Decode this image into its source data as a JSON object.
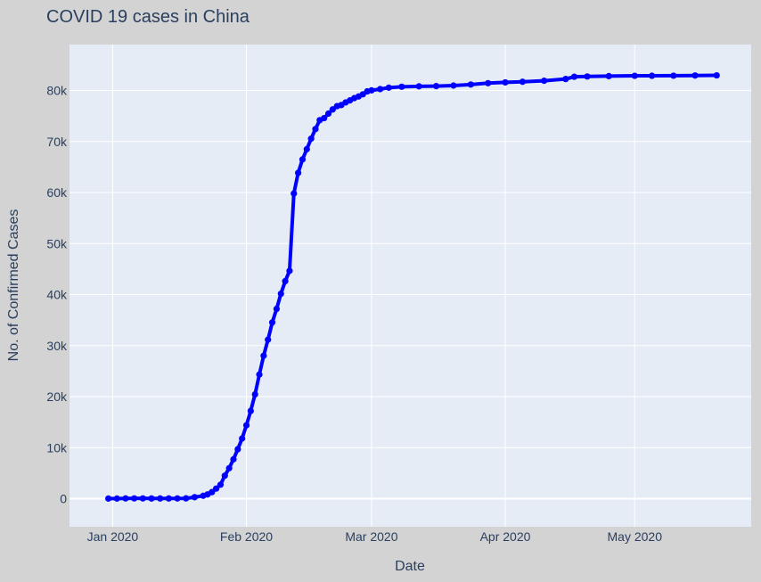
{
  "chart_data": {
    "type": "line",
    "title": "COVID 19 cases in China",
    "xlabel": "Date",
    "ylabel": "No. of Confirmed Cases",
    "x_axis_type": "date",
    "xlim": [
      "2019-12-22",
      "2020-05-28"
    ],
    "ylim": [
      -5500,
      89000
    ],
    "x_ticks": [
      {
        "date": "2020-01-01",
        "label": "Jan 2020"
      },
      {
        "date": "2020-02-01",
        "label": "Feb 2020"
      },
      {
        "date": "2020-03-01",
        "label": "Mar 2020"
      },
      {
        "date": "2020-04-01",
        "label": "Apr 2020"
      },
      {
        "date": "2020-05-01",
        "label": "May 2020"
      }
    ],
    "y_ticks": [
      {
        "value": 0,
        "label": "0"
      },
      {
        "value": 10000,
        "label": "10k"
      },
      {
        "value": 20000,
        "label": "20k"
      },
      {
        "value": 30000,
        "label": "30k"
      },
      {
        "value": 40000,
        "label": "40k"
      },
      {
        "value": 50000,
        "label": "50k"
      },
      {
        "value": 60000,
        "label": "60k"
      },
      {
        "value": 70000,
        "label": "70k"
      },
      {
        "value": 80000,
        "label": "80k"
      }
    ],
    "grid": true,
    "mode": "lines+markers",
    "series": [
      {
        "color": "#0000ff",
        "points": [
          [
            "2019-12-31",
            27
          ],
          [
            "2020-01-02",
            27
          ],
          [
            "2020-01-04",
            44
          ],
          [
            "2020-01-06",
            59
          ],
          [
            "2020-01-08",
            59
          ],
          [
            "2020-01-10",
            41
          ],
          [
            "2020-01-12",
            41
          ],
          [
            "2020-01-14",
            41
          ],
          [
            "2020-01-16",
            45
          ],
          [
            "2020-01-18",
            62
          ],
          [
            "2020-01-20",
            291
          ],
          [
            "2020-01-22",
            571
          ],
          [
            "2020-01-23",
            830
          ],
          [
            "2020-01-24",
            1287
          ],
          [
            "2020-01-25",
            1975
          ],
          [
            "2020-01-26",
            2744
          ],
          [
            "2020-01-27",
            4515
          ],
          [
            "2020-01-28",
            5974
          ],
          [
            "2020-01-29",
            7711
          ],
          [
            "2020-01-30",
            9692
          ],
          [
            "2020-01-31",
            11791
          ],
          [
            "2020-02-01",
            14380
          ],
          [
            "2020-02-02",
            17205
          ],
          [
            "2020-02-03",
            20438
          ],
          [
            "2020-02-04",
            24324
          ],
          [
            "2020-02-05",
            28018
          ],
          [
            "2020-02-06",
            31161
          ],
          [
            "2020-02-07",
            34546
          ],
          [
            "2020-02-08",
            37198
          ],
          [
            "2020-02-09",
            40171
          ],
          [
            "2020-02-10",
            42638
          ],
          [
            "2020-02-11",
            44653
          ],
          [
            "2020-02-12",
            59804
          ],
          [
            "2020-02-13",
            63851
          ],
          [
            "2020-02-14",
            66492
          ],
          [
            "2020-02-15",
            68500
          ],
          [
            "2020-02-16",
            70548
          ],
          [
            "2020-02-17",
            72436
          ],
          [
            "2020-02-18",
            74185
          ],
          [
            "2020-02-19",
            74576
          ],
          [
            "2020-02-20",
            75465
          ],
          [
            "2020-02-21",
            76288
          ],
          [
            "2020-02-22",
            76936
          ],
          [
            "2020-02-23",
            77150
          ],
          [
            "2020-02-24",
            77658
          ],
          [
            "2020-02-25",
            78064
          ],
          [
            "2020-02-26",
            78497
          ],
          [
            "2020-02-27",
            78824
          ],
          [
            "2020-02-28",
            79251
          ],
          [
            "2020-02-29",
            79824
          ],
          [
            "2020-03-01",
            80026
          ],
          [
            "2020-03-03",
            80270
          ],
          [
            "2020-03-05",
            80552
          ],
          [
            "2020-03-08",
            80735
          ],
          [
            "2020-03-12",
            80815
          ],
          [
            "2020-03-16",
            80860
          ],
          [
            "2020-03-20",
            80967
          ],
          [
            "2020-03-24",
            81171
          ],
          [
            "2020-03-28",
            81439
          ],
          [
            "2020-04-01",
            81589
          ],
          [
            "2020-04-05",
            81708
          ],
          [
            "2020-04-10",
            81907
          ],
          [
            "2020-04-15",
            82249
          ],
          [
            "2020-04-17",
            82692
          ],
          [
            "2020-04-20",
            82747
          ],
          [
            "2020-04-25",
            82816
          ],
          [
            "2020-05-01",
            82875
          ],
          [
            "2020-05-05",
            82881
          ],
          [
            "2020-05-10",
            82901
          ],
          [
            "2020-05-15",
            82933
          ],
          [
            "2020-05-20",
            82967
          ]
        ]
      }
    ]
  }
}
